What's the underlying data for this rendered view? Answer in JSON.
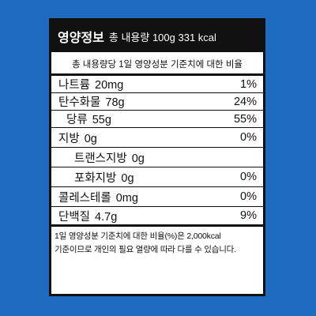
{
  "label": {
    "title": "영양정보",
    "total": "총 내용량 100g 331 kcal",
    "reference": "총 내용량당  1일 영양성분 기준치에 대한 비율",
    "nutrients": [
      {
        "name": "나트륨",
        "amount": "20mg",
        "percent": "1%",
        "level": 0
      },
      {
        "name": "탄수화물",
        "amount": "78g",
        "percent": "24%",
        "level": 0
      },
      {
        "name": "당류",
        "amount": "55g",
        "percent": "55%",
        "level": 1
      },
      {
        "name": "지방",
        "amount": "0g",
        "percent": "0%",
        "level": 0
      },
      {
        "name": "트랜스지방",
        "amount": "0g",
        "percent": "",
        "level": 2
      },
      {
        "name": "포화지방",
        "amount": "0g",
        "percent": "0%",
        "level": 2
      },
      {
        "name": "콜레스테롤",
        "amount": "0mg",
        "percent": "0%",
        "level": 0
      },
      {
        "name": "단백질",
        "amount": "4.7g",
        "percent": "9%",
        "level": 0
      }
    ],
    "footnote_line1": "1일 영양성분 기준치에 대한 비율(%)은 2,000kcal",
    "footnote_line2": "기준이므로 개인의 필요 열량에 따라 다를 수 있습니다."
  },
  "colors": {
    "background": "#1f6bbf",
    "panel": "#ffffff",
    "header": "#111111"
  }
}
